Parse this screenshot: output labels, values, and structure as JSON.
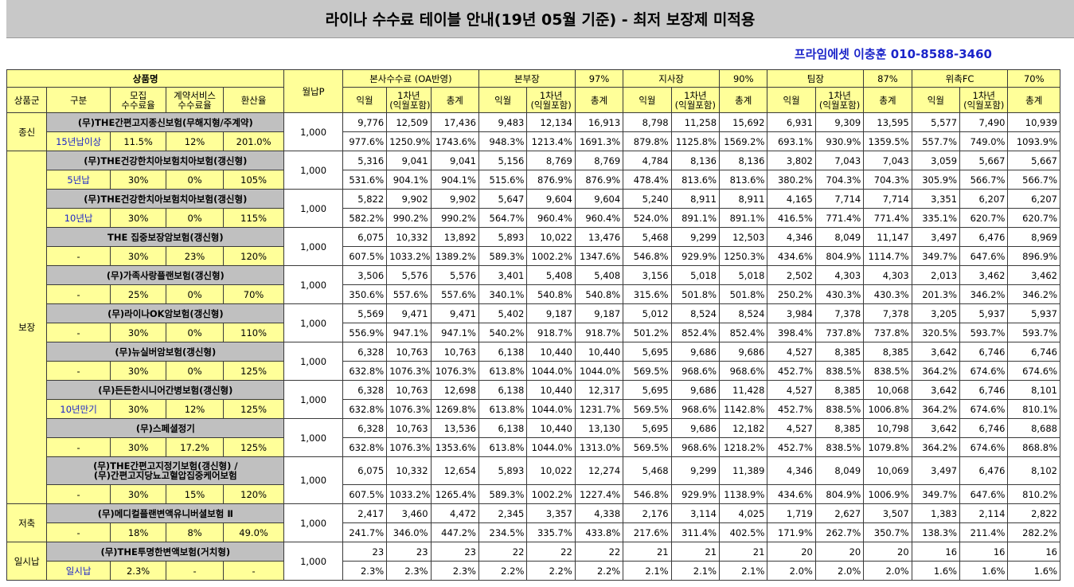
{
  "title": "라이나 수수료 테이블 안내(19년 05월 기준) - 최저 보장제 미적용",
  "contact": "프라임에셋 이충훈 010-8588-3460",
  "header": {
    "product_name": "상품명",
    "monthly": "월납P",
    "group": "상품군",
    "category": "구분",
    "recruit_fee": "모집\n수수료율",
    "service_fee": "계약서비스\n수수료율",
    "conversion": "환산율",
    "blocks": [
      {
        "name": "본사수수료 (OA반영)",
        "rate": ""
      },
      {
        "name": "본부장",
        "rate": "97%"
      },
      {
        "name": "지사장",
        "rate": "90%"
      },
      {
        "name": "팀장",
        "rate": "87%"
      },
      {
        "name": "위촉FC",
        "rate": "70%"
      }
    ],
    "sub": {
      "m1": "익월",
      "y1": "1차년\n(익월포함)",
      "total": "총계"
    }
  },
  "groups": [
    {
      "label": "종신",
      "rows": [
        0
      ]
    },
    {
      "label": "보장",
      "rows": [
        1,
        2,
        3,
        4,
        5,
        6,
        7,
        8,
        9
      ]
    },
    {
      "label": "저축",
      "rows": [
        10
      ]
    },
    {
      "label": "일시납",
      "rows": [
        11
      ]
    }
  ],
  "products": [
    {
      "name": "(무)THE간편고지종신보험(무해지형/주계약)",
      "category": "15년납이상",
      "recruit": "11.5%",
      "service": "12%",
      "conversion": "201.0%",
      "monthly": "1,000",
      "amounts": [
        "9,776",
        "12,509",
        "17,436",
        "9,483",
        "12,134",
        "16,913",
        "8,798",
        "11,258",
        "15,692",
        "6,931",
        "9,309",
        "13,595",
        "5,577",
        "7,490",
        "10,939"
      ],
      "percents": [
        "977.6%",
        "1250.9%",
        "1743.6%",
        "948.3%",
        "1213.4%",
        "1691.3%",
        "879.8%",
        "1125.8%",
        "1569.2%",
        "693.1%",
        "930.9%",
        "1359.5%",
        "557.7%",
        "749.0%",
        "1093.9%"
      ]
    },
    {
      "name": "(무)THE건강한치아보험치아보험(갱신형)",
      "category": "5년납",
      "recruit": "30%",
      "service": "0%",
      "conversion": "105%",
      "monthly": "1,000",
      "amounts": [
        "5,316",
        "9,041",
        "9,041",
        "5,156",
        "8,769",
        "8,769",
        "4,784",
        "8,136",
        "8,136",
        "3,802",
        "7,043",
        "7,043",
        "3,059",
        "5,667",
        "5,667"
      ],
      "percents": [
        "531.6%",
        "904.1%",
        "904.1%",
        "515.6%",
        "876.9%",
        "876.9%",
        "478.4%",
        "813.6%",
        "813.6%",
        "380.2%",
        "704.3%",
        "704.3%",
        "305.9%",
        "566.7%",
        "566.7%"
      ]
    },
    {
      "name": "(무)THE건강한치아보험치아보험(갱신형)",
      "category": "10년납",
      "recruit": "30%",
      "service": "0%",
      "conversion": "115%",
      "monthly": "1,000",
      "amounts": [
        "5,822",
        "9,902",
        "9,902",
        "5,647",
        "9,604",
        "9,604",
        "5,240",
        "8,911",
        "8,911",
        "4,165",
        "7,714",
        "7,714",
        "3,351",
        "6,207",
        "6,207"
      ],
      "percents": [
        "582.2%",
        "990.2%",
        "990.2%",
        "564.7%",
        "960.4%",
        "960.4%",
        "524.0%",
        "891.1%",
        "891.1%",
        "416.5%",
        "771.4%",
        "771.4%",
        "335.1%",
        "620.7%",
        "620.7%"
      ]
    },
    {
      "name": "THE 집중보장암보험(갱신형)",
      "category": "-",
      "recruit": "30%",
      "service": "23%",
      "conversion": "120%",
      "monthly": "1,000",
      "amounts": [
        "6,075",
        "10,332",
        "13,892",
        "5,893",
        "10,022",
        "13,476",
        "5,468",
        "9,299",
        "12,503",
        "4,346",
        "8,049",
        "11,147",
        "3,497",
        "6,476",
        "8,969"
      ],
      "percents": [
        "607.5%",
        "1033.2%",
        "1389.2%",
        "589.3%",
        "1002.2%",
        "1347.6%",
        "546.8%",
        "929.9%",
        "1250.3%",
        "434.6%",
        "804.9%",
        "1114.7%",
        "349.7%",
        "647.6%",
        "896.9%"
      ]
    },
    {
      "name": "(무)가족사랑플랜보험(갱신형)",
      "category": "-",
      "recruit": "25%",
      "service": "0%",
      "conversion": "70%",
      "monthly": "1,000",
      "amounts": [
        "3,506",
        "5,576",
        "5,576",
        "3,401",
        "5,408",
        "5,408",
        "3,156",
        "5,018",
        "5,018",
        "2,502",
        "4,303",
        "4,303",
        "2,013",
        "3,462",
        "3,462"
      ],
      "percents": [
        "350.6%",
        "557.6%",
        "557.6%",
        "340.1%",
        "540.8%",
        "540.8%",
        "315.6%",
        "501.8%",
        "501.8%",
        "250.2%",
        "430.3%",
        "430.3%",
        "201.3%",
        "346.2%",
        "346.2%"
      ]
    },
    {
      "name": "(무)라이나OK암보험(갱신형)",
      "category": "-",
      "recruit": "30%",
      "service": "0%",
      "conversion": "110%",
      "monthly": "1,000",
      "amounts": [
        "5,569",
        "9,471",
        "9,471",
        "5,402",
        "9,187",
        "9,187",
        "5,012",
        "8,524",
        "8,524",
        "3,984",
        "7,378",
        "7,378",
        "3,205",
        "5,937",
        "5,937"
      ],
      "percents": [
        "556.9%",
        "947.1%",
        "947.1%",
        "540.2%",
        "918.7%",
        "918.7%",
        "501.2%",
        "852.4%",
        "852.4%",
        "398.4%",
        "737.8%",
        "737.8%",
        "320.5%",
        "593.7%",
        "593.7%"
      ]
    },
    {
      "name": "(무)뉴실버암보험(갱신형)",
      "category": "-",
      "recruit": "30%",
      "service": "0%",
      "conversion": "125%",
      "monthly": "1,000",
      "amounts": [
        "6,328",
        "10,763",
        "10,763",
        "6,138",
        "10,440",
        "10,440",
        "5,695",
        "9,686",
        "9,686",
        "4,527",
        "8,385",
        "8,385",
        "3,642",
        "6,746",
        "6,746"
      ],
      "percents": [
        "632.8%",
        "1076.3%",
        "1076.3%",
        "613.8%",
        "1044.0%",
        "1044.0%",
        "569.5%",
        "968.6%",
        "968.6%",
        "452.7%",
        "838.5%",
        "838.5%",
        "364.2%",
        "674.6%",
        "674.6%"
      ]
    },
    {
      "name": "(무)든든한시니어간병보험(갱신형)",
      "category": "10년만기",
      "recruit": "30%",
      "service": "12%",
      "conversion": "125%",
      "monthly": "1,000",
      "amounts": [
        "6,328",
        "10,763",
        "12,698",
        "6,138",
        "10,440",
        "12,317",
        "5,695",
        "9,686",
        "11,428",
        "4,527",
        "8,385",
        "10,068",
        "3,642",
        "6,746",
        "8,101"
      ],
      "percents": [
        "632.8%",
        "1076.3%",
        "1269.8%",
        "613.8%",
        "1044.0%",
        "1231.7%",
        "569.5%",
        "968.6%",
        "1142.8%",
        "452.7%",
        "838.5%",
        "1006.8%",
        "364.2%",
        "674.6%",
        "810.1%"
      ]
    },
    {
      "name": "(무)스페셜정기",
      "category": "-",
      "recruit": "30%",
      "service": "17.2%",
      "conversion": "125%",
      "monthly": "1,000",
      "amounts": [
        "6,328",
        "10,763",
        "13,536",
        "6,138",
        "10,440",
        "13,130",
        "5,695",
        "9,686",
        "12,182",
        "4,527",
        "8,385",
        "10,798",
        "3,642",
        "6,746",
        "8,688"
      ],
      "percents": [
        "632.8%",
        "1076.3%",
        "1353.6%",
        "613.8%",
        "1044.0%",
        "1313.0%",
        "569.5%",
        "968.6%",
        "1218.2%",
        "452.7%",
        "838.5%",
        "1079.8%",
        "364.2%",
        "674.6%",
        "868.8%"
      ]
    },
    {
      "name": "(무)THE간편고지정기보험(갱신형) /\n(무)간편고지당뇨고혈압집중케어보험",
      "category": "-",
      "recruit": "30%",
      "service": "15%",
      "conversion": "120%",
      "monthly": "1,000",
      "amounts": [
        "6,075",
        "10,332",
        "12,654",
        "5,893",
        "10,022",
        "12,274",
        "5,468",
        "9,299",
        "11,389",
        "4,346",
        "8,049",
        "10,069",
        "3,497",
        "6,476",
        "8,102"
      ],
      "percents": [
        "607.5%",
        "1033.2%",
        "1265.4%",
        "589.3%",
        "1002.2%",
        "1227.4%",
        "546.8%",
        "929.9%",
        "1138.9%",
        "434.6%",
        "804.9%",
        "1006.9%",
        "349.7%",
        "647.6%",
        "810.2%"
      ]
    },
    {
      "name": "(무)메디컬플랜변액유니버셜보험 Ⅱ",
      "category": "-",
      "recruit": "18%",
      "service": "8%",
      "conversion": "49.0%",
      "monthly": "1,000",
      "amounts": [
        "2,417",
        "3,460",
        "4,472",
        "2,345",
        "3,357",
        "4,338",
        "2,176",
        "3,114",
        "4,025",
        "1,719",
        "2,627",
        "3,507",
        "1,383",
        "2,114",
        "2,822"
      ],
      "percents": [
        "241.7%",
        "346.0%",
        "447.2%",
        "234.5%",
        "335.7%",
        "433.8%",
        "217.6%",
        "311.4%",
        "402.5%",
        "171.9%",
        "262.7%",
        "350.7%",
        "138.3%",
        "211.4%",
        "282.2%"
      ]
    },
    {
      "name": "(무)THE투명한변액보험(거치형)",
      "category": "일시납",
      "recruit": "2.3%",
      "service": "-",
      "conversion": "-",
      "monthly": "1,000",
      "amounts": [
        "23",
        "23",
        "23",
        "22",
        "22",
        "22",
        "21",
        "21",
        "21",
        "20",
        "20",
        "20",
        "16",
        "16",
        "16"
      ],
      "percents": [
        "2.3%",
        "2.3%",
        "2.3%",
        "2.2%",
        "2.2%",
        "2.2%",
        "2.1%",
        "2.1%",
        "2.1%",
        "2.0%",
        "2.0%",
        "2.0%",
        "1.6%",
        "1.6%",
        "1.6%"
      ]
    }
  ],
  "blue_categories": [
    "15년납이상",
    "5년납",
    "10년납",
    "10년만기",
    "일시납"
  ]
}
